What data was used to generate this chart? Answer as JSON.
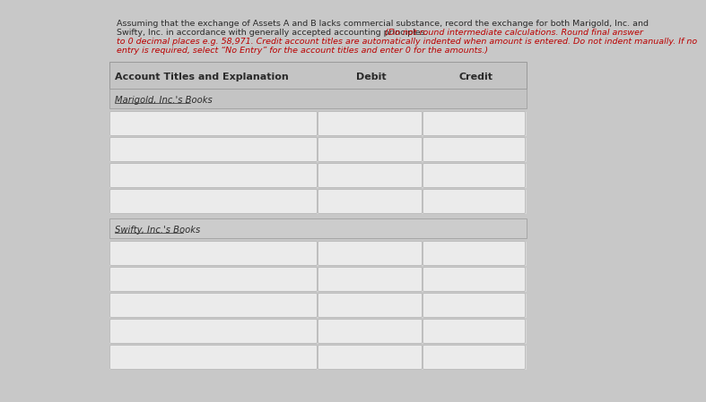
{
  "bg_color": "#c8c8c8",
  "page_bg": "#e0e0e0",
  "form_bg": "#d8d8d8",
  "header_bg": "#c4c4c4",
  "box_bg": "#ebebeb",
  "box_border": "#b8b8b8",
  "section2_bg": "#cccccc",
  "text_color": "#2a2a2a",
  "red_color": "#bb0000",
  "title_line1": "Assuming that the exchange of Assets A and B lacks commercial substance, record the exchange for both Marigold, Inc. and",
  "title_line2_normal": "Swifty, Inc. in accordance with generally accepted accounting principles. ",
  "title_line2_italic": "(Do not round intermediate calculations. Round final answer",
  "title_line3": "to 0 decimal places e.g. 58,971. Credit account titles are automatically indented when amount is entered. Do not indent manually. If no",
  "title_line4": "entry is required, select “No Entry” for the account titles and enter 0 for the amounts.)",
  "col_header_account": "Account Titles and Explanation",
  "col_header_debit": "Debit",
  "col_header_credit": "Credit",
  "section1_label": "Marigold, Inc.'s Books",
  "section2_label": "Swifty, Inc.'s Books",
  "marigold_rows": 4,
  "swifty_rows": 5,
  "title_fontsize": 6.8,
  "header_fontsize": 8.0,
  "section_fontsize": 7.2
}
